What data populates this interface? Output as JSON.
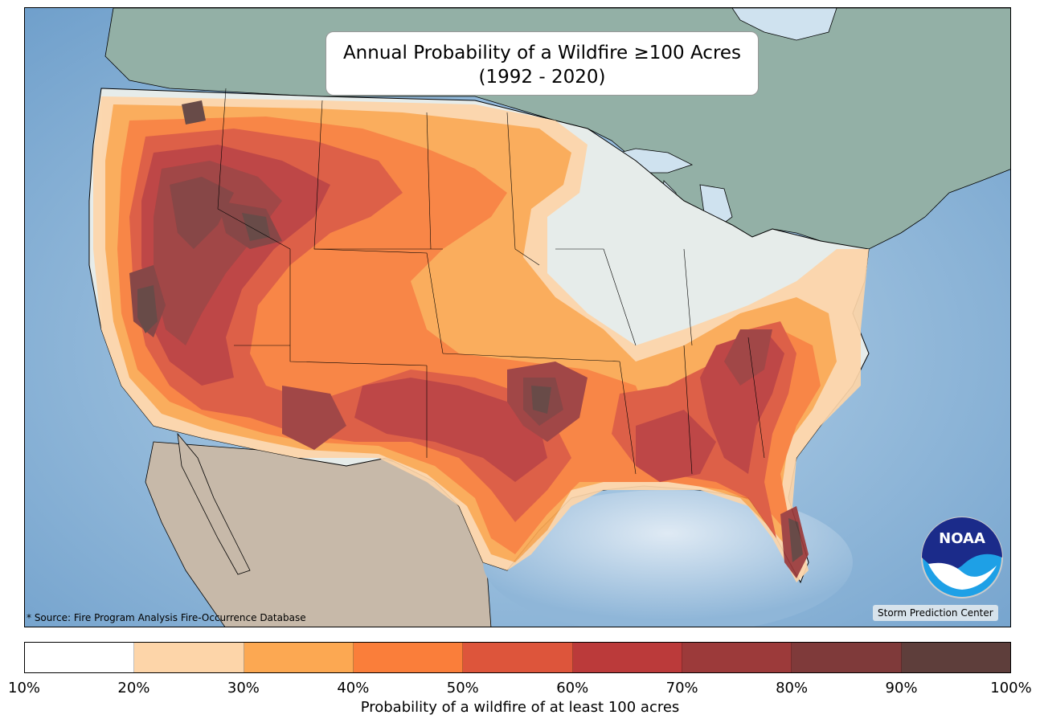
{
  "title": {
    "line1": "Annual Probability of a Wildfire ≥100 Acres",
    "line2": "(1992 - 2020)"
  },
  "source_note": "* Source: Fire Program Analysis Fire-Occurrence Database",
  "credit": "Storm Prediction Center",
  "logo": {
    "icon": "noaa-logo",
    "text": "NOAA"
  },
  "colorbar": {
    "label": "Probability of a wildfire of at least 100 acres",
    "ticks": [
      "10%",
      "20%",
      "30%",
      "40%",
      "50%",
      "60%",
      "70%",
      "80%",
      "90%",
      "100%"
    ],
    "colors": [
      "#ffffff",
      "#fdd5a9",
      "#fca852",
      "#fa7e3a",
      "#dd553b",
      "#bb3a3a",
      "#9c3a3a",
      "#7f3a3a",
      "#5e3e3b"
    ]
  },
  "map_colors": {
    "ocean": "#7fa9cf",
    "land": "#c9b8a6",
    "canada": "#98b4aa",
    "lakes": "#cfe2ef"
  }
}
